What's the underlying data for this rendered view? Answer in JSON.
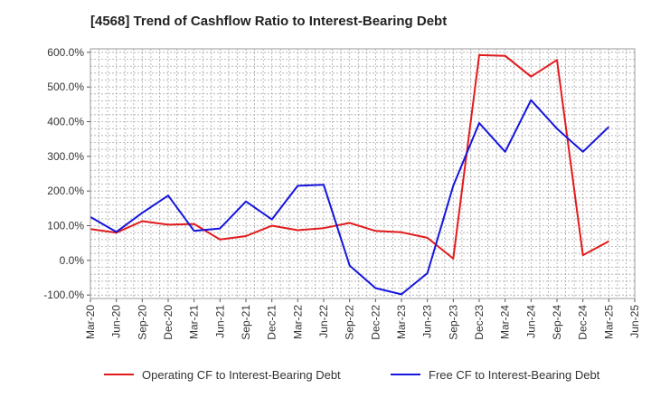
{
  "chart_data": {
    "type": "line",
    "title": "[4568]  Trend of Cashflow Ratio to Interest-Bearing Debt",
    "xlabel": "",
    "ylabel": "",
    "ylim": [
      -110,
      610
    ],
    "y_ticks": [
      "600.0%",
      "500.0%",
      "400.0%",
      "300.0%",
      "200.0%",
      "100.0%",
      "0.0%",
      "-100.0%"
    ],
    "y_tick_values": [
      600,
      500,
      400,
      300,
      200,
      100,
      0,
      -100
    ],
    "x_tick_labels": [
      "Mar-20",
      "Jun-20",
      "Sep-20",
      "Dec-20",
      "Mar-21",
      "Jun-21",
      "Sep-21",
      "Dec-21",
      "Mar-22",
      "Jun-22",
      "Sep-22",
      "Dec-22",
      "Mar-23",
      "Jun-23",
      "Sep-23",
      "Dec-23",
      "Mar-24",
      "Jun-24",
      "Sep-24",
      "Dec-24",
      "Mar-25",
      "Jun-25"
    ],
    "x": [
      "Mar-20",
      "Jun-20",
      "Sep-20",
      "Dec-20",
      "Mar-21",
      "Jun-21",
      "Sep-21",
      "Dec-21",
      "Mar-22",
      "Jun-22",
      "Sep-22",
      "Dec-22",
      "Mar-23",
      "Jun-23",
      "Sep-23",
      "Dec-23",
      "Mar-24",
      "Jun-24",
      "Sep-24",
      "Dec-24",
      "Mar-25"
    ],
    "grid": true,
    "legend_placement": "bottom",
    "series": [
      {
        "name": "Operating CF to Interest-Bearing Debt",
        "color": "#e31a1c",
        "values": [
          90,
          80,
          113,
          103,
          105,
          60,
          70,
          100,
          87,
          93,
          108,
          85,
          81,
          65,
          5,
          592,
          590,
          530,
          578,
          15,
          55
        ]
      },
      {
        "name": "Free CF to Interest-Bearing Debt",
        "color": "#1515dd",
        "values": [
          125,
          82,
          137,
          187,
          85,
          92,
          170,
          118,
          215,
          218,
          -15,
          -80,
          -98,
          -37,
          215,
          396,
          313,
          462,
          380,
          313,
          385
        ]
      }
    ]
  }
}
